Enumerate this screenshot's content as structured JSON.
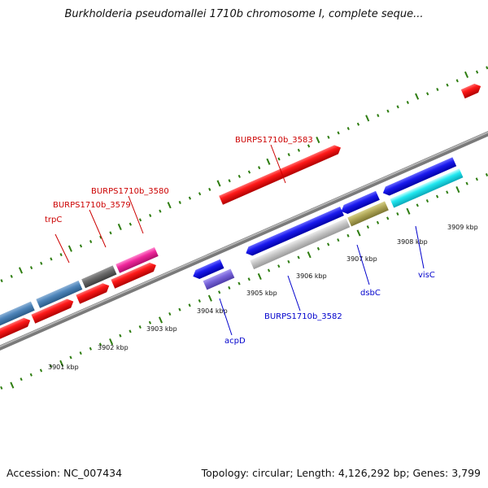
{
  "title": "Burkholderia pseudomallei 1710b chromosome I, complete seque...",
  "footer": {
    "accession": "Accession: NC_007434",
    "summary": "Topology: circular; Length: 4,126,292 bp; Genes: 3,799"
  },
  "colors": {
    "backbone": "#7f7f7f",
    "tick": "#2e7d10",
    "forward_label": "#cc0000",
    "reverse_label": "#0000cc"
  },
  "scale_labels": [
    "3901 kbp",
    "3902 kbp",
    "3903 kbp",
    "3904 kbp",
    "3905 kbp",
    "3906 kbp",
    "3907 kbp",
    "3908 kbp",
    "3909 kbp"
  ],
  "features": [
    {
      "name": "fwd-gene-1",
      "color": "red"
    },
    {
      "name": "fwd-gene-2",
      "color": "red"
    },
    {
      "name": "fwd-gene-3",
      "color": "red"
    },
    {
      "name": "fwd-gene-4",
      "color": "red"
    },
    {
      "name": "fwd-gene-5",
      "color": "red"
    },
    {
      "name": "fwd-gene-6",
      "color": "red"
    },
    {
      "name": "fwd-gene-7",
      "color": "red"
    },
    {
      "name": "trpC-feature",
      "color": "steelblue"
    },
    {
      "name": "BURPS1710b_3579-feature",
      "color": "steelblue"
    },
    {
      "name": "BURPS1710b_3580-feature",
      "color": "dimgray"
    },
    {
      "name": "pink-feature",
      "color": "deeppink"
    },
    {
      "name": "rev-gene-1",
      "color": "blue"
    },
    {
      "name": "BURPS1710b_3582-gene",
      "color": "blue"
    },
    {
      "name": "dsbC-gene",
      "color": "blue"
    },
    {
      "name": "visC-gene",
      "color": "blue"
    },
    {
      "name": "acpD-feature",
      "color": "slateblue"
    },
    {
      "name": "BURPS1710b_3582-feature",
      "color": "silver"
    },
    {
      "name": "dsbC-feature",
      "color": "olive"
    },
    {
      "name": "visC-feature",
      "color": "cyan"
    }
  ],
  "gene_labels": {
    "trpC": "trpC",
    "b3579": "BURPS1710b_3579",
    "b3580": "BURPS1710b_3580",
    "b3583": "BURPS1710b_3583",
    "acpD": "acpD",
    "b3582": "BURPS1710b_3582",
    "dsbC": "dsbC",
    "visC": "visC"
  }
}
